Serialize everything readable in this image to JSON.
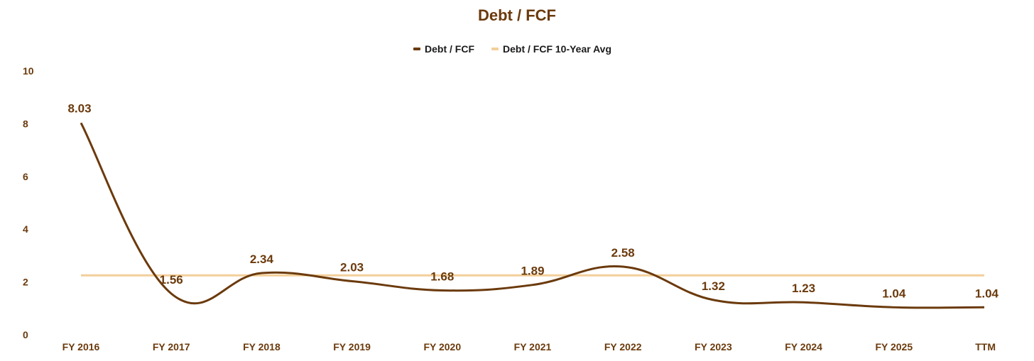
{
  "chart_data": {
    "type": "line",
    "title": "Debt / FCF",
    "categories": [
      "FY 2016",
      "FY 2017",
      "FY 2018",
      "FY 2019",
      "FY 2020",
      "FY 2021",
      "FY 2022",
      "FY 2023",
      "FY 2024",
      "FY 2025",
      "TTM"
    ],
    "series": [
      {
        "name": "Debt / FCF",
        "color": "#6b3a0c",
        "values": [
          8.03,
          1.56,
          2.34,
          2.03,
          1.68,
          1.89,
          2.58,
          1.32,
          1.23,
          1.04,
          1.04
        ],
        "labels": [
          "8.03",
          "1.56",
          "2.34",
          "2.03",
          "1.68",
          "1.89",
          "2.58",
          "1.32",
          "1.23",
          "1.04",
          "1.04"
        ]
      },
      {
        "name": "Debt / FCF 10-Year Avg",
        "color": "#f3cf9a",
        "values": [
          2.25,
          2.25,
          2.25,
          2.25,
          2.25,
          2.25,
          2.25,
          2.25,
          2.25,
          2.25,
          2.25
        ]
      }
    ],
    "yticks": [
      "0",
      "2",
      "4",
      "6",
      "8",
      "10"
    ],
    "ylim": [
      0,
      10
    ],
    "xlabel": "",
    "ylabel": "",
    "grid": false,
    "legend_position": "top-center",
    "text_color": "#6b3a0c"
  }
}
